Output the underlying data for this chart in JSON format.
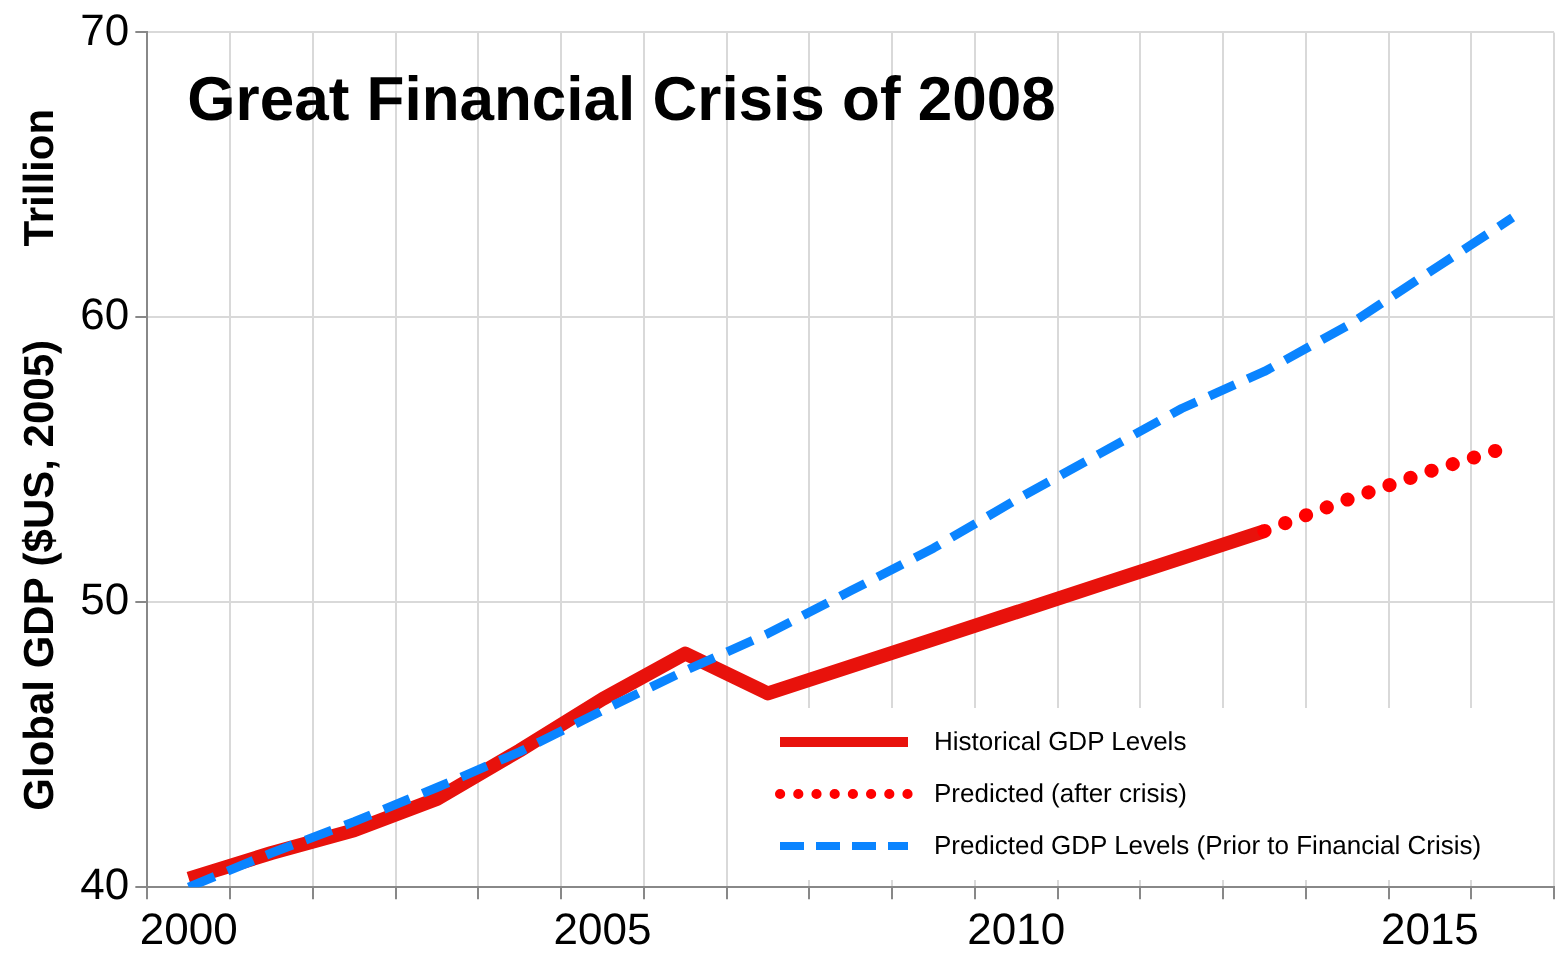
{
  "chart_data": {
    "type": "line",
    "title": "Great Financial Crisis of 2008",
    "ylabel": "Global GDP ($US, 2005)        Trillion",
    "categories": [
      "2000",
      null,
      null,
      null,
      null,
      "2005",
      null,
      null,
      null,
      null,
      "2010",
      null,
      null,
      null,
      null,
      "2015",
      null
    ],
    "series": [
      {
        "name": "Historical GDP Levels",
        "color": "#e8120c",
        "line_style": "solid",
        "values": [
          40.3,
          41.2,
          42.0,
          43.1,
          44.8,
          46.6,
          48.2,
          46.8,
          47.75,
          48.7,
          49.65,
          50.6,
          51.55,
          52.5,
          null,
          null,
          null
        ]
      },
      {
        "name": "Predicted (after crisis)",
        "color": "#ff0000",
        "line_style": "dotted",
        "values": [
          null,
          null,
          null,
          null,
          null,
          null,
          null,
          null,
          null,
          null,
          null,
          null,
          null,
          52.5,
          53.6,
          54.6,
          55.5
        ]
      },
      {
        "name": "Predicted GDP Levels (Prior to Financial Crisis)",
        "color": "#0a84ff",
        "line_style": "dashed",
        "values": [
          40.0,
          41.2,
          42.3,
          43.5,
          44.75,
          46.2,
          47.6,
          48.9,
          50.4,
          51.9,
          53.6,
          55.2,
          56.8,
          58.1,
          59.7,
          61.6,
          63.5
        ]
      }
    ],
    "ylim": [
      40,
      70
    ],
    "yticks": [
      40,
      50,
      60,
      70
    ],
    "grid": true,
    "legend": "bottom right",
    "marker": "none"
  }
}
